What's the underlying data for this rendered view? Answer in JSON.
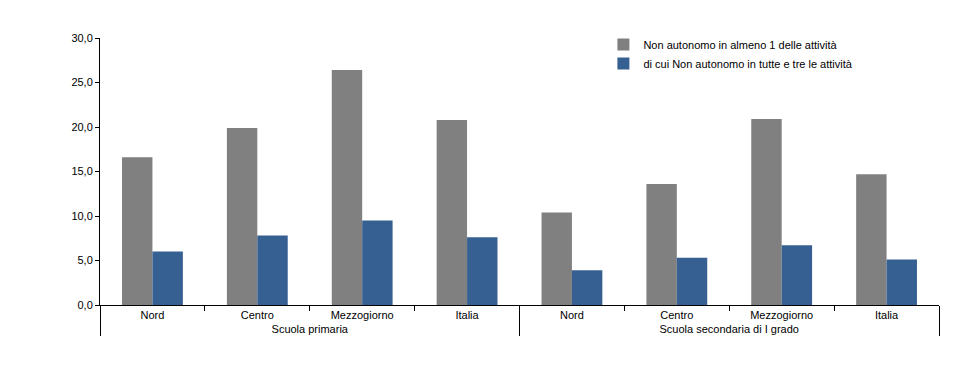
{
  "chart_data": {
    "type": "bar",
    "categories": [
      "Nord",
      "Centro",
      "Mezzogiorno",
      "Italia",
      "Nord",
      "Centro",
      "Mezzogiorno",
      "Italia"
    ],
    "category_groups": [
      "Scuola primaria",
      "Scuola primaria",
      "Scuola primaria",
      "Scuola primaria",
      "Scuola secondaria di I grado",
      "Scuola secondaria di I grado",
      "Scuola secondaria di I grado",
      "Scuola secondaria di I grado"
    ],
    "series": [
      {
        "name": "Non autonomo in almeno 1 delle attività",
        "color": "#808080",
        "values": [
          16.6,
          19.9,
          26.4,
          20.8,
          10.4,
          13.6,
          20.9,
          14.7
        ]
      },
      {
        "name": "di cui Non autonomo in tutte e tre le attività",
        "color": "#376092",
        "values": [
          6.0,
          7.8,
          9.5,
          7.6,
          3.9,
          5.3,
          6.7,
          5.1
        ]
      }
    ],
    "ylim": [
      0,
      30
    ],
    "yticks": [
      {
        "value": 0,
        "label": "0,0"
      },
      {
        "value": 5,
        "label": "5,0"
      },
      {
        "value": 10,
        "label": "10,0"
      },
      {
        "value": 15,
        "label": "15,0"
      },
      {
        "value": 20,
        "label": "20,0"
      },
      {
        "value": 25,
        "label": "25,0"
      },
      {
        "value": 30,
        "label": "30,0"
      }
    ],
    "grid": false,
    "legend": "top-right"
  }
}
